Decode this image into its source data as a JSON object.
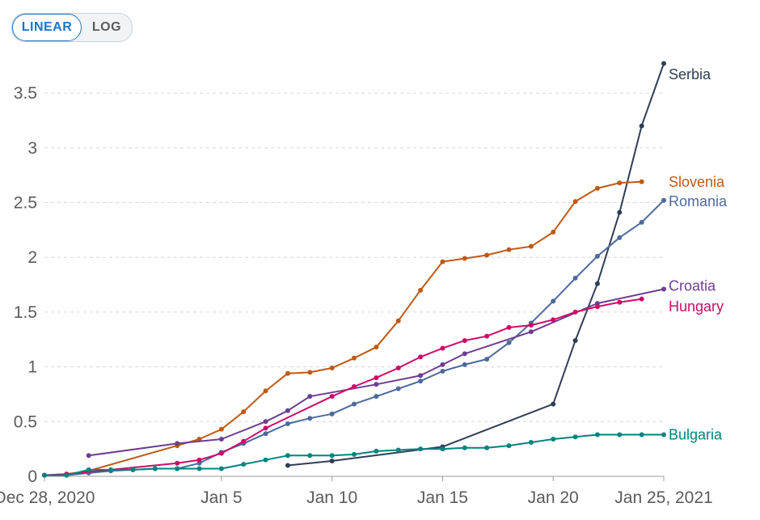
{
  "scale_toggle": {
    "linear_label": "LINEAR",
    "log_label": "LOG",
    "selected": "LINEAR"
  },
  "chart_data": {
    "type": "line",
    "title": "",
    "xlabel": "",
    "ylabel": "",
    "x_domain": [
      0,
      28
    ],
    "ylim": [
      0,
      3.8
    ],
    "x_origin_date": "Dec 28, 2020",
    "x_ticks": [
      {
        "x": 0,
        "label": "Dec 28, 2020"
      },
      {
        "x": 8,
        "label": "Jan 5"
      },
      {
        "x": 13,
        "label": "Jan 10"
      },
      {
        "x": 18,
        "label": "Jan 15"
      },
      {
        "x": 23,
        "label": "Jan 20"
      },
      {
        "x": 28,
        "label": "Jan 25, 2021"
      }
    ],
    "y_ticks": [
      {
        "y": 0,
        "label": "0"
      },
      {
        "y": 0.5,
        "label": "0.5"
      },
      {
        "y": 1,
        "label": "1"
      },
      {
        "y": 1.5,
        "label": "1.5"
      },
      {
        "y": 2,
        "label": "2"
      },
      {
        "y": 2.5,
        "label": "2.5"
      },
      {
        "y": 3,
        "label": "3"
      },
      {
        "y": 3.5,
        "label": "3.5"
      }
    ],
    "grid": true,
    "series": [
      {
        "name": "Serbia",
        "color": "#2f3e55",
        "x": [
          11,
          13,
          18,
          23,
          24,
          25,
          26,
          27,
          28
        ],
        "y": [
          0.1,
          0.14,
          0.27,
          0.66,
          1.24,
          1.76,
          2.41,
          3.2,
          3.77
        ]
      },
      {
        "name": "Slovenia",
        "color": "#c05917",
        "x": [
          0,
          1,
          2,
          6,
          7,
          8,
          9,
          10,
          11,
          12,
          13,
          14,
          15,
          16,
          17,
          18,
          19,
          20,
          21,
          22,
          23,
          24,
          25,
          26,
          27
        ],
        "y": [
          0.01,
          0.02,
          0.05,
          0.28,
          0.34,
          0.43,
          0.59,
          0.78,
          0.94,
          0.95,
          0.99,
          1.08,
          1.18,
          1.42,
          1.7,
          1.96,
          1.99,
          2.02,
          2.07,
          2.1,
          2.23,
          2.51,
          2.63,
          2.68,
          2.69
        ]
      },
      {
        "name": "Romania",
        "color": "#4c6a9c",
        "x": [
          0,
          1,
          2,
          3,
          4,
          5,
          6,
          7,
          8,
          9,
          10,
          11,
          12,
          13,
          14,
          15,
          16,
          17,
          18,
          19,
          20,
          21,
          22,
          23,
          24,
          25,
          26,
          27,
          28
        ],
        "y": [
          0.01,
          0.01,
          0.03,
          0.05,
          0.06,
          0.07,
          0.07,
          0.12,
          0.22,
          0.3,
          0.39,
          0.48,
          0.53,
          0.57,
          0.66,
          0.73,
          0.8,
          0.87,
          0.96,
          1.02,
          1.07,
          1.22,
          1.4,
          1.6,
          1.81,
          2.01,
          2.18,
          2.32,
          2.52
        ]
      },
      {
        "name": "Croatia",
        "color": "#6d3e91",
        "x": [
          2,
          6,
          8,
          10,
          11,
          12,
          15,
          17,
          18,
          19,
          22,
          25,
          28
        ],
        "y": [
          0.19,
          0.3,
          0.34,
          0.5,
          0.6,
          0.73,
          0.84,
          0.92,
          1.02,
          1.12,
          1.32,
          1.58,
          1.71
        ]
      },
      {
        "name": "Hungary",
        "color": "#cf0a66",
        "x": [
          0,
          1,
          6,
          7,
          8,
          9,
          10,
          13,
          14,
          15,
          16,
          17,
          18,
          19,
          20,
          21,
          22,
          23,
          24,
          25,
          26,
          27
        ],
        "y": [
          0.01,
          0.02,
          0.12,
          0.15,
          0.21,
          0.32,
          0.44,
          0.73,
          0.82,
          0.9,
          0.99,
          1.09,
          1.17,
          1.24,
          1.28,
          1.36,
          1.38,
          1.43,
          1.5,
          1.55,
          1.59,
          1.62
        ]
      },
      {
        "name": "Bulgaria",
        "color": "#00847e",
        "x": [
          0,
          1,
          2,
          3,
          4,
          5,
          6,
          7,
          8,
          9,
          10,
          11,
          12,
          13,
          14,
          15,
          16,
          17,
          18,
          19,
          20,
          21,
          22,
          23,
          24,
          25,
          26,
          27,
          28
        ],
        "y": [
          0.01,
          0.01,
          0.06,
          0.06,
          0.06,
          0.07,
          0.07,
          0.07,
          0.07,
          0.11,
          0.15,
          0.19,
          0.19,
          0.19,
          0.2,
          0.23,
          0.24,
          0.25,
          0.25,
          0.26,
          0.26,
          0.28,
          0.31,
          0.34,
          0.36,
          0.38,
          0.38,
          0.38,
          0.38
        ]
      }
    ],
    "series_labels": [
      {
        "name": "Serbia",
        "anchor_y": 3.67
      },
      {
        "name": "Slovenia",
        "anchor_y": 2.69
      },
      {
        "name": "Romania",
        "anchor_y": 2.51
      },
      {
        "name": "Croatia",
        "anchor_y": 1.74
      },
      {
        "name": "Hungary",
        "anchor_y": 1.55
      },
      {
        "name": "Bulgaria",
        "anchor_y": 0.38
      }
    ]
  }
}
